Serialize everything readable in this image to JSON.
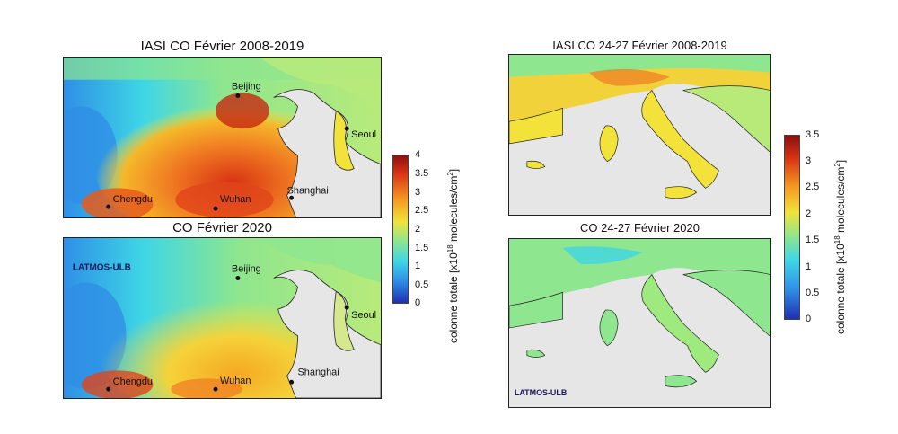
{
  "left_panel": {
    "top_title": "IASI CO Février 2008-2019",
    "bottom_title": "CO Février 2020",
    "watermark": "LATMOS-ULB",
    "cities": [
      "Beijing",
      "Seoul",
      "Chengdu",
      "Wuhan",
      "Shanghai"
    ],
    "colorbar": {
      "ticks": [
        "4",
        "3.5",
        "3",
        "2.5",
        "2",
        "1.5",
        "1",
        "0.5",
        "0"
      ],
      "label": "colonne totale [x10",
      "label_sup": "18",
      "label_tail": " molecules/cm",
      "label_sup2": "2",
      "label_end": "]"
    }
  },
  "right_panel": {
    "top_title": "IASI CO 24-27 Février 2008-2019",
    "bottom_title": "CO 24-27 Février 2020",
    "watermark": "LATMOS-ULB",
    "colorbar": {
      "ticks": [
        "3.5",
        "3",
        "2.5",
        "2",
        "1.5",
        "1",
        "0.5",
        "0"
      ],
      "label": "colonne totale [x10",
      "label_sup": "18",
      "label_tail": " molecules/cm",
      "label_sup2": "2",
      "label_end": "]"
    }
  },
  "colors": {
    "land_gray": "#e6e6e6",
    "scale": [
      "#1f2fb4",
      "#2f8fe6",
      "#3ed6e6",
      "#8ee68e",
      "#f2e23a",
      "#f59a22",
      "#d83214",
      "#8b0f0f"
    ]
  }
}
